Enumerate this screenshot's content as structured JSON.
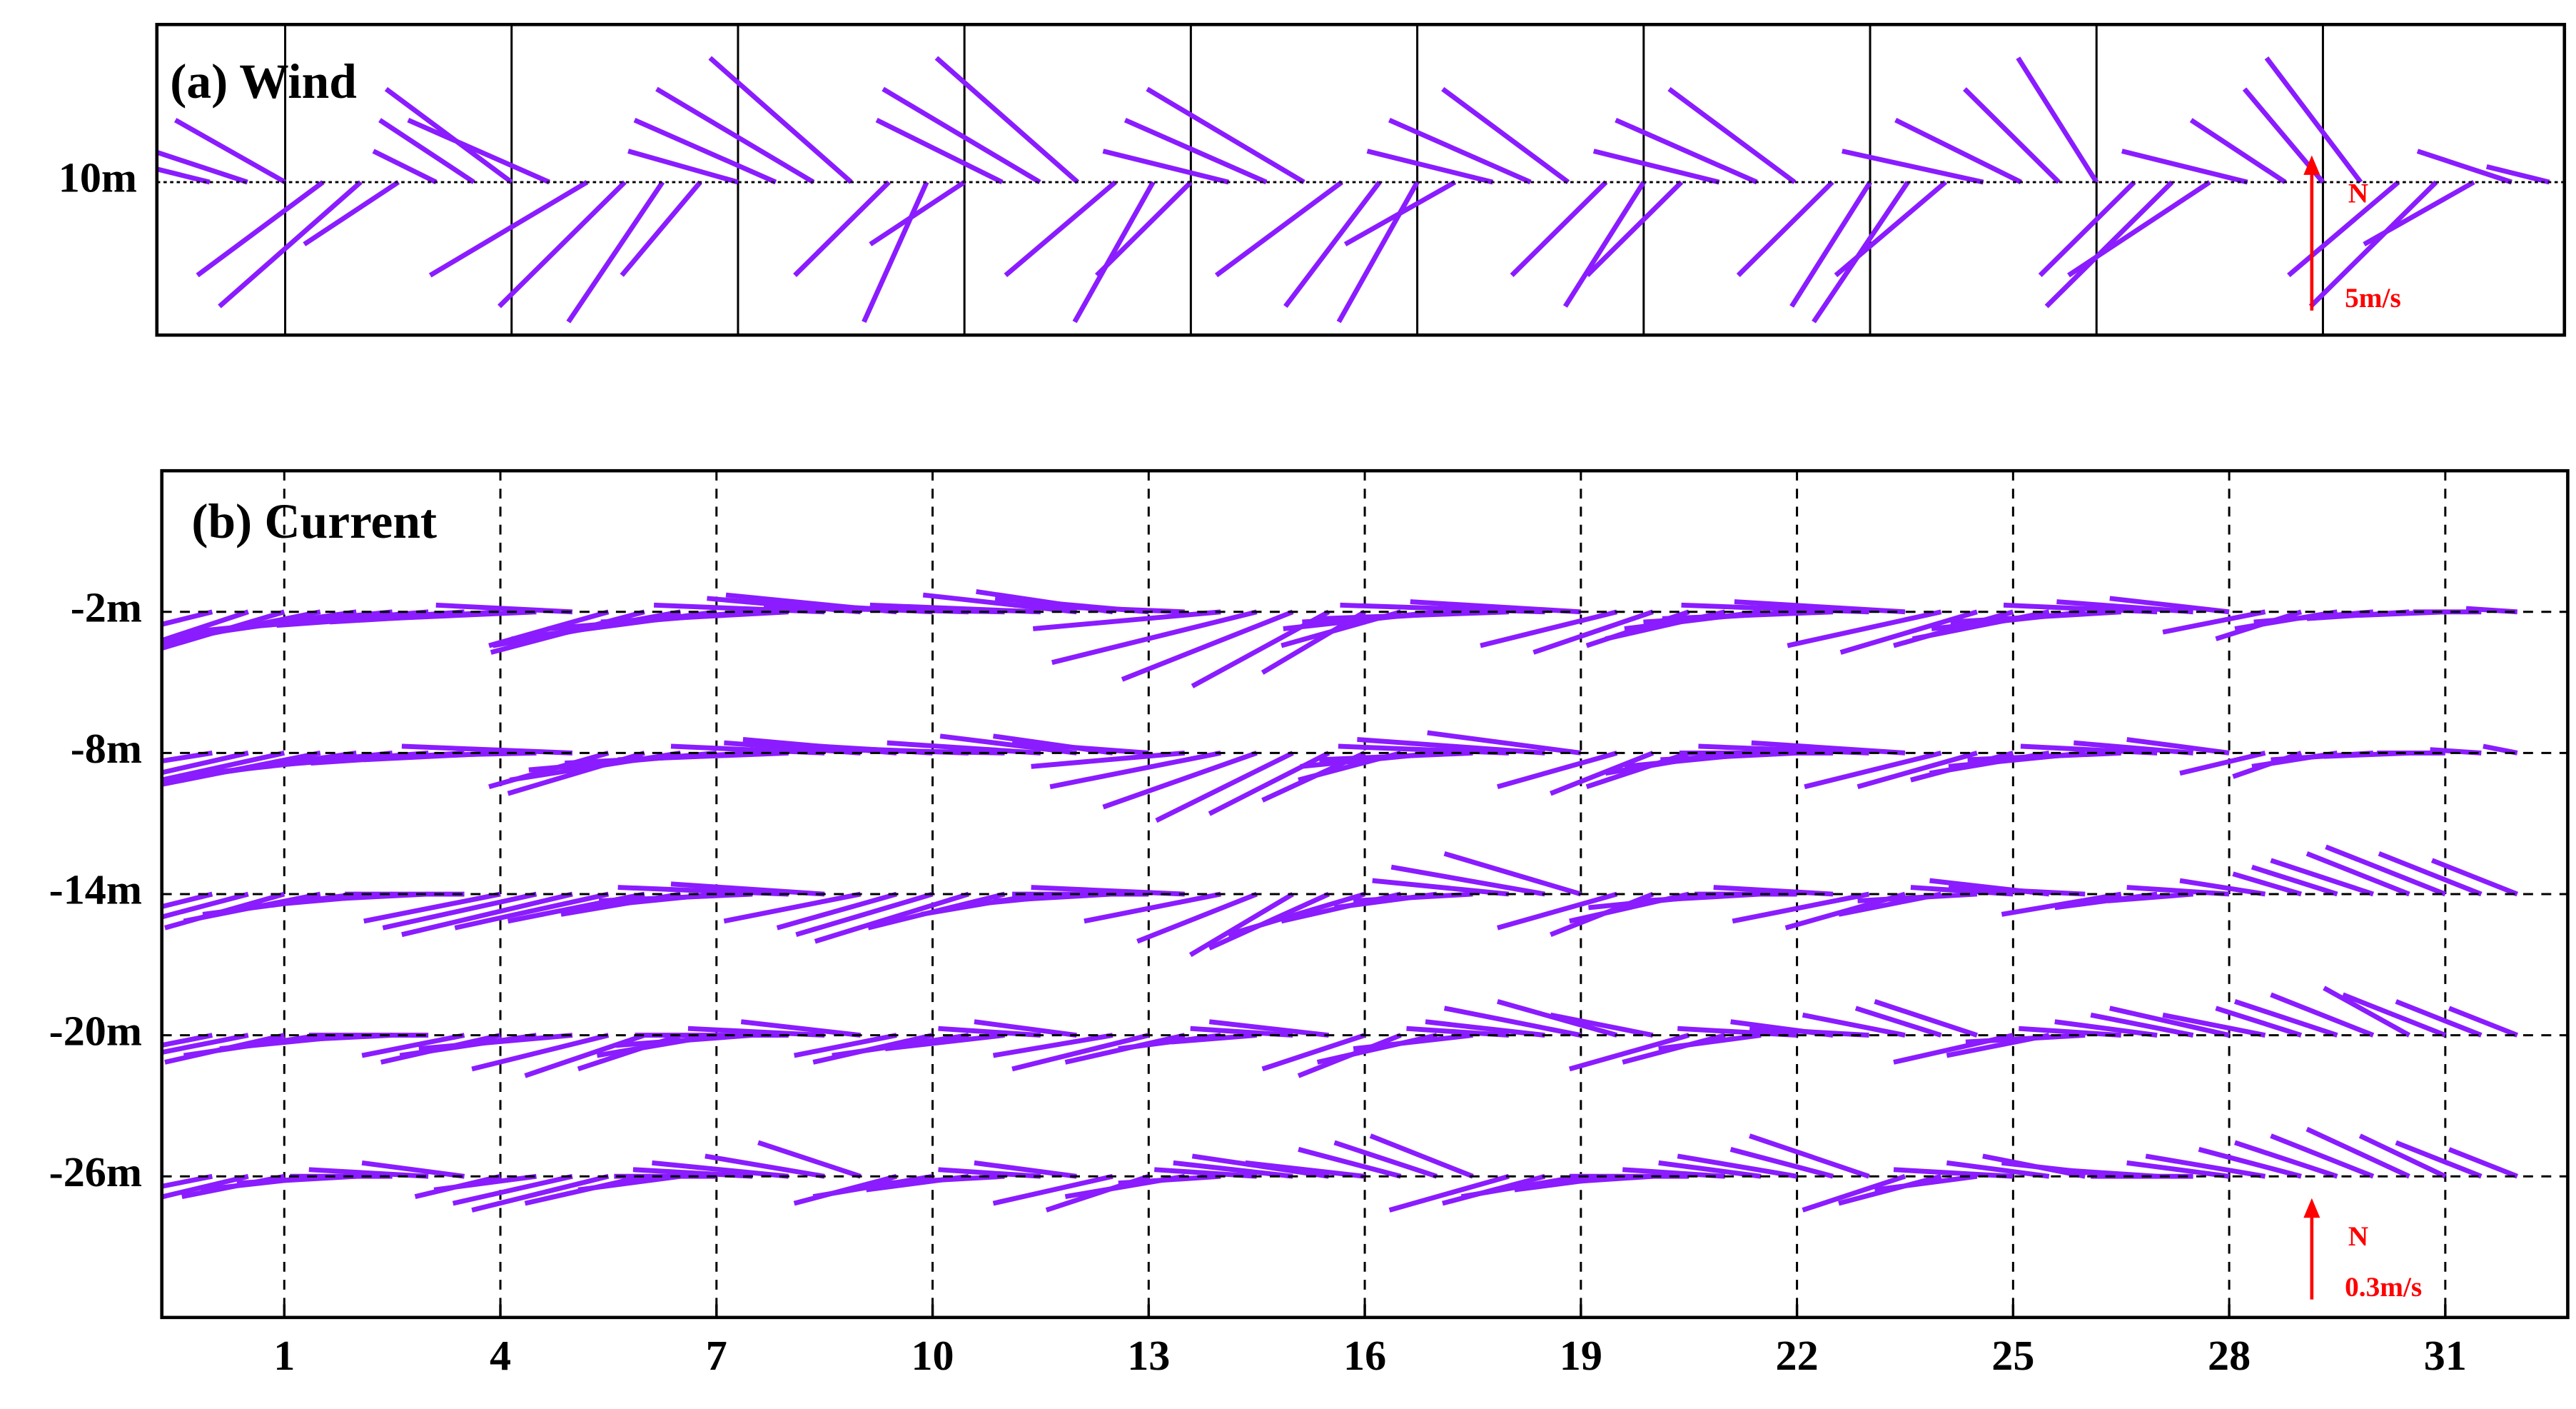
{
  "chart_data": [
    {
      "type": "stick",
      "title": "(a) Wind",
      "color": "#8a1cff",
      "xlim": [
        -0.7,
        31.2
      ],
      "xticks": [
        1,
        4,
        7,
        10,
        13,
        16,
        19,
        22,
        25,
        28
      ],
      "show_xtick_labels": false,
      "grid": "solid",
      "ylim": [
        3.5,
        16.7
      ],
      "yticks": [
        {
          "value": 10,
          "label": "10m"
        }
      ],
      "scale_arrow": {
        "value": 5,
        "label": "5m/s",
        "north_label": "N",
        "color": "#ff0000"
      },
      "x": [
        0,
        0.5,
        1,
        1.5,
        2,
        2.5,
        3,
        3.5,
        4,
        4.5,
        5,
        5.5,
        6,
        6.5,
        7,
        7.5,
        8,
        8.5,
        9,
        9.5,
        10,
        10.5,
        11,
        11.5,
        12,
        12.5,
        13,
        13.5,
        14,
        14.5,
        15,
        15.5,
        16,
        16.5,
        17,
        17.5,
        18,
        18.5,
        19,
        19.5,
        20,
        20.5,
        21,
        21.5,
        22,
        22.5,
        23,
        23.5,
        24,
        24.5,
        25,
        25.5,
        26,
        26.5,
        27,
        27.5,
        28,
        28.5,
        29,
        29.5,
        30,
        30.5,
        31
      ],
      "series": [
        {
          "u": [
            -2,
            -3,
            -3.5,
            -4,
            -4.5,
            -3,
            -2,
            -3,
            -4,
            -4.5,
            -5,
            -4,
            -3,
            -2.5,
            -3.5,
            -4.5,
            -5,
            -4.5,
            -3,
            -2,
            -3,
            -4,
            -5,
            -4.5,
            -3.5,
            -2.5,
            -3,
            -4,
            -4.5,
            -5,
            -4,
            -3,
            -2.5,
            -3.5,
            -4,
            -4.5,
            -4,
            -3,
            -2.5,
            -3,
            -4,
            -4.5,
            -4,
            -3,
            -2.5,
            -3,
            -3.5,
            -4.5,
            -4,
            -3,
            -2.5,
            -3,
            -4,
            -4.5,
            -4,
            -3,
            -2.5,
            -3,
            -3.5,
            -4,
            -3.5,
            -3,
            -2
          ],
          "v": [
            0.5,
            1,
            2,
            -3,
            -4,
            -2,
            1,
            2,
            3,
            2,
            -3,
            -4,
            -4.5,
            -3,
            1,
            2,
            3,
            4,
            -3,
            -4.5,
            -2,
            2,
            3,
            4,
            -3,
            -4.5,
            -3,
            1,
            2,
            3,
            -3,
            -4,
            -4.5,
            -2,
            1,
            2,
            3,
            -3,
            -4,
            -3,
            1,
            2,
            3,
            -3,
            -4,
            -4.5,
            -3,
            1,
            2,
            3,
            4,
            -3,
            -4,
            -3,
            1,
            2,
            3,
            4,
            -3,
            -4,
            -2,
            1,
            0.5
          ]
        }
      ]
    },
    {
      "type": "stick",
      "title": "(b) Current",
      "color": "#8a1cff",
      "xlim": [
        -0.7,
        32.7
      ],
      "xticks": [
        1,
        4,
        7,
        10,
        13,
        16,
        19,
        22,
        25,
        28,
        31
      ],
      "show_xtick_labels": true,
      "grid": "dashed",
      "ylim": [
        -32,
        4
      ],
      "yticks": [
        {
          "value": -2,
          "label": "-2m"
        },
        {
          "value": -8,
          "label": "-8m"
        },
        {
          "value": -14,
          "label": "-14m"
        },
        {
          "value": -20,
          "label": "-20m"
        },
        {
          "value": -26,
          "label": "-26m"
        }
      ],
      "scale_arrow": {
        "value": 0.3,
        "label": "0.3m/s",
        "north_label": "N",
        "color": "#ff0000"
      },
      "x": [
        0,
        0.5,
        1,
        1.5,
        2,
        2.5,
        3,
        3.5,
        4,
        4.5,
        5,
        5.5,
        6,
        6.5,
        7,
        7.5,
        8,
        8.5,
        9,
        9.5,
        10,
        10.5,
        11,
        11.5,
        12,
        12.5,
        13,
        13.5,
        14,
        14.5,
        15,
        15.5,
        16,
        16.5,
        17,
        17.5,
        18,
        18.5,
        19,
        19.5,
        20,
        20.5,
        21,
        21.5,
        22,
        22.5,
        23,
        23.5,
        24,
        24.5,
        25,
        25.5,
        26,
        26.5,
        27,
        27.5,
        28,
        28.5,
        29,
        29.5,
        30,
        30.5,
        31,
        31.5,
        32
      ],
      "series": [
        {
          "u": [
            -0.2,
            -0.3,
            -0.4,
            -0.5,
            -0.55,
            -0.6,
            -0.6,
            -0.55,
            -0.5,
            -0.45,
            -0.4,
            -0.35,
            -0.45,
            -0.55,
            -0.6,
            -0.6,
            -0.55,
            -0.5,
            -0.45,
            -0.5,
            -0.55,
            -0.6,
            -0.55,
            -0.5,
            -0.45,
            -0.4,
            -0.45,
            -0.5,
            -0.55,
            -0.6,
            -0.5,
            -0.4,
            -0.3,
            -0.35,
            -0.45,
            -0.5,
            -0.55,
            -0.6,
            -0.5,
            -0.4,
            -0.35,
            -0.3,
            -0.35,
            -0.4,
            -0.45,
            -0.5,
            -0.55,
            -0.5,
            -0.45,
            -0.4,
            -0.35,
            -0.4,
            -0.45,
            -0.5,
            -0.45,
            -0.4,
            -0.35,
            -0.3,
            -0.25,
            -0.3,
            -0.35,
            -0.3,
            -0.25,
            -0.2,
            -0.15
          ],
          "v": [
            -0.05,
            -0.1,
            -0.12,
            -0.1,
            -0.08,
            -0.06,
            -0.05,
            -0.04,
            -0.03,
            -0.02,
            0.02,
            -0.1,
            -0.12,
            -0.1,
            -0.08,
            -0.05,
            -0.03,
            0.02,
            0.04,
            0.05,
            0.03,
            0.02,
            0.01,
            0.02,
            0.05,
            0.06,
            0.04,
            0.02,
            -0.05,
            -0.15,
            -0.2,
            -0.22,
            -0.18,
            -0.1,
            -0.05,
            -0.03,
            -0.02,
            0.02,
            0.03,
            -0.1,
            -0.12,
            -0.1,
            -0.08,
            -0.05,
            -0.03,
            -0.02,
            0.02,
            0.03,
            -0.1,
            -0.12,
            -0.1,
            -0.08,
            -0.05,
            -0.03,
            0.02,
            0.03,
            0.04,
            -0.06,
            -0.08,
            -0.05,
            -0.03,
            -0.02,
            -0.01,
            0,
            0.01
          ]
        },
        {
          "u": [
            -0.25,
            -0.35,
            -0.45,
            -0.5,
            -0.55,
            -0.55,
            -0.5,
            -0.45,
            -0.4,
            -0.45,
            -0.5,
            -0.35,
            -0.4,
            -0.5,
            -0.55,
            -0.55,
            -0.5,
            -0.45,
            -0.4,
            -0.45,
            -0.5,
            -0.55,
            -0.5,
            -0.45,
            -0.4,
            -0.35,
            -0.4,
            -0.45,
            -0.5,
            -0.45,
            -0.4,
            -0.35,
            -0.3,
            -0.3,
            -0.4,
            -0.45,
            -0.5,
            -0.55,
            -0.45,
            -0.35,
            -0.3,
            -0.3,
            -0.35,
            -0.4,
            -0.4,
            -0.45,
            -0.5,
            -0.45,
            -0.4,
            -0.35,
            -0.3,
            -0.35,
            -0.4,
            -0.45,
            -0.4,
            -0.35,
            -0.3,
            -0.25,
            -0.2,
            -0.25,
            -0.3,
            -0.25,
            -0.2,
            -0.15,
            -0.1
          ],
          "v": [
            -0.04,
            -0.08,
            -0.1,
            -0.1,
            -0.08,
            -0.06,
            -0.04,
            -0.03,
            -0.02,
            -0.01,
            0.02,
            -0.1,
            -0.12,
            -0.08,
            -0.05,
            -0.03,
            -0.02,
            0.02,
            0.03,
            0.04,
            0.03,
            0.02,
            0.01,
            0.03,
            0.05,
            0.05,
            0.03,
            -0.04,
            -0.1,
            -0.16,
            -0.2,
            -0.18,
            -0.14,
            -0.08,
            -0.04,
            -0.02,
            0.02,
            0.04,
            0.06,
            -0.1,
            -0.12,
            -0.1,
            -0.06,
            -0.04,
            -0.02,
            0,
            0.02,
            0.03,
            -0.1,
            -0.1,
            -0.08,
            -0.06,
            -0.04,
            -0.02,
            0.02,
            0.03,
            0.04,
            -0.06,
            -0.07,
            -0.04,
            -0.02,
            -0.01,
            0,
            0.01,
            0.02
          ]
        },
        {
          "u": [
            -0.2,
            -0.3,
            -0.35,
            -0.4,
            -0.45,
            -0.45,
            -0.4,
            -0.35,
            -0.4,
            -0.45,
            -0.5,
            -0.45,
            -0.4,
            -0.35,
            -0.4,
            -0.45,
            -0.5,
            -0.45,
            -0.4,
            -0.35,
            -0.4,
            -0.45,
            -0.4,
            -0.35,
            -0.3,
            -0.35,
            -0.4,
            -0.45,
            -0.4,
            -0.35,
            -0.3,
            -0.35,
            -0.4,
            -0.35,
            -0.3,
            -0.35,
            -0.4,
            -0.45,
            -0.4,
            -0.35,
            -0.3,
            -0.35,
            -0.4,
            -0.35,
            -0.3,
            -0.35,
            -0.4,
            -0.35,
            -0.3,
            -0.35,
            -0.3,
            -0.35,
            -0.4,
            -0.35,
            -0.3,
            -0.25,
            -0.3,
            -0.25,
            -0.2,
            -0.25,
            -0.3,
            -0.3,
            -0.35,
            -0.3,
            -0.25
          ],
          "v": [
            -0.05,
            -0.08,
            -0.1,
            -0.08,
            -0.06,
            -0.04,
            -0.02,
            0,
            -0.08,
            -0.1,
            -0.12,
            -0.1,
            -0.08,
            -0.06,
            -0.04,
            -0.02,
            0.02,
            0.03,
            -0.08,
            -0.1,
            -0.12,
            -0.14,
            -0.1,
            -0.06,
            -0.03,
            -0.02,
            0,
            0.02,
            -0.08,
            -0.14,
            -0.18,
            -0.16,
            -0.12,
            -0.08,
            -0.04,
            -0.02,
            0.04,
            0.08,
            0.12,
            -0.1,
            -0.12,
            -0.08,
            -0.04,
            -0.02,
            0,
            0.02,
            -0.08,
            -0.1,
            -0.06,
            -0.02,
            0.02,
            0.04,
            0.02,
            -0.06,
            -0.04,
            -0.02,
            0.02,
            0.04,
            0.06,
            0.08,
            0.1,
            0.12,
            0.14,
            0.12,
            0.1
          ]
        },
        {
          "u": [
            -0.2,
            -0.3,
            -0.35,
            -0.4,
            -0.4,
            -0.4,
            -0.35,
            -0.3,
            -0.35,
            -0.4,
            -0.45,
            -0.4,
            -0.35,
            -0.3,
            -0.35,
            -0.4,
            -0.45,
            -0.4,
            -0.35,
            -0.3,
            -0.35,
            -0.4,
            -0.35,
            -0.3,
            -0.3,
            -0.35,
            -0.4,
            -0.35,
            -0.3,
            -0.25,
            -0.3,
            -0.35,
            -0.3,
            -0.3,
            -0.35,
            -0.35,
            -0.3,
            -0.35,
            -0.4,
            -0.35,
            -0.3,
            -0.35,
            -0.3,
            -0.3,
            -0.35,
            -0.3,
            -0.35,
            -0.3,
            -0.25,
            -0.3,
            -0.35,
            -0.3,
            -0.35,
            -0.3,
            -0.3,
            -0.3,
            -0.35,
            -0.3,
            -0.25,
            -0.3,
            -0.3,
            -0.25,
            -0.3,
            -0.25,
            -0.2
          ],
          "v": [
            -0.04,
            -0.06,
            -0.08,
            -0.06,
            -0.04,
            -0.02,
            0,
            -0.06,
            -0.08,
            -0.06,
            -0.04,
            -0.1,
            -0.12,
            -0.1,
            -0.06,
            -0.03,
            0,
            0.02,
            0.04,
            -0.06,
            -0.08,
            -0.06,
            -0.04,
            0.02,
            0.04,
            -0.06,
            -0.1,
            -0.08,
            -0.04,
            -0.02,
            0.02,
            0.04,
            -0.1,
            -0.12,
            -0.08,
            -0.04,
            0.02,
            0.04,
            0.08,
            0.1,
            0.06,
            -0.1,
            -0.08,
            -0.04,
            0.02,
            0.04,
            0.02,
            0.06,
            0.08,
            0.1,
            -0.08,
            -0.06,
            -0.02,
            0.02,
            0.04,
            0.06,
            0.08,
            0.06,
            0.08,
            0.1,
            0.12,
            0.14,
            0.12,
            0.1,
            0.08
          ]
        },
        {
          "u": [
            -0.2,
            -0.25,
            -0.3,
            -0.35,
            -0.35,
            -0.3,
            -0.35,
            -0.3,
            -0.25,
            -0.3,
            -0.35,
            -0.4,
            -0.35,
            -0.3,
            -0.3,
            -0.35,
            -0.4,
            -0.35,
            -0.3,
            -0.3,
            -0.35,
            -0.3,
            -0.35,
            -0.3,
            -0.3,
            -0.35,
            -0.3,
            -0.35,
            -0.3,
            -0.3,
            -0.35,
            -0.4,
            -0.35,
            -0.3,
            -0.3,
            -0.3,
            -0.35,
            -0.3,
            -0.35,
            -0.3,
            -0.3,
            -0.35,
            -0.3,
            -0.3,
            -0.35,
            -0.3,
            -0.35,
            -0.3,
            -0.3,
            -0.3,
            -0.35,
            -0.3,
            -0.3,
            -0.35,
            -0.3,
            -0.3,
            -0.3,
            -0.35,
            -0.3,
            -0.3,
            -0.3,
            -0.3,
            -0.25,
            -0.25,
            -0.2
          ],
          "v": [
            -0.04,
            -0.06,
            -0.06,
            -0.04,
            -0.02,
            0,
            0.02,
            0.04,
            -0.06,
            -0.04,
            -0.08,
            -0.1,
            -0.08,
            -0.04,
            0,
            0.02,
            0.04,
            0.06,
            0.1,
            -0.08,
            -0.06,
            -0.04,
            -0.02,
            0.02,
            0.04,
            -0.08,
            -0.1,
            -0.06,
            -0.02,
            0.02,
            0.04,
            0.06,
            0.04,
            0.08,
            0.1,
            0.12,
            -0.1,
            -0.08,
            -0.06,
            -0.04,
            -0.02,
            0,
            0.02,
            0.04,
            0.06,
            0.08,
            0.12,
            -0.1,
            -0.08,
            -0.04,
            0.02,
            0.04,
            0.06,
            0.04,
            0.02,
            0,
            0.04,
            0.06,
            0.08,
            0.1,
            0.12,
            0.14,
            0.12,
            0.1,
            0.08
          ]
        }
      ]
    }
  ]
}
